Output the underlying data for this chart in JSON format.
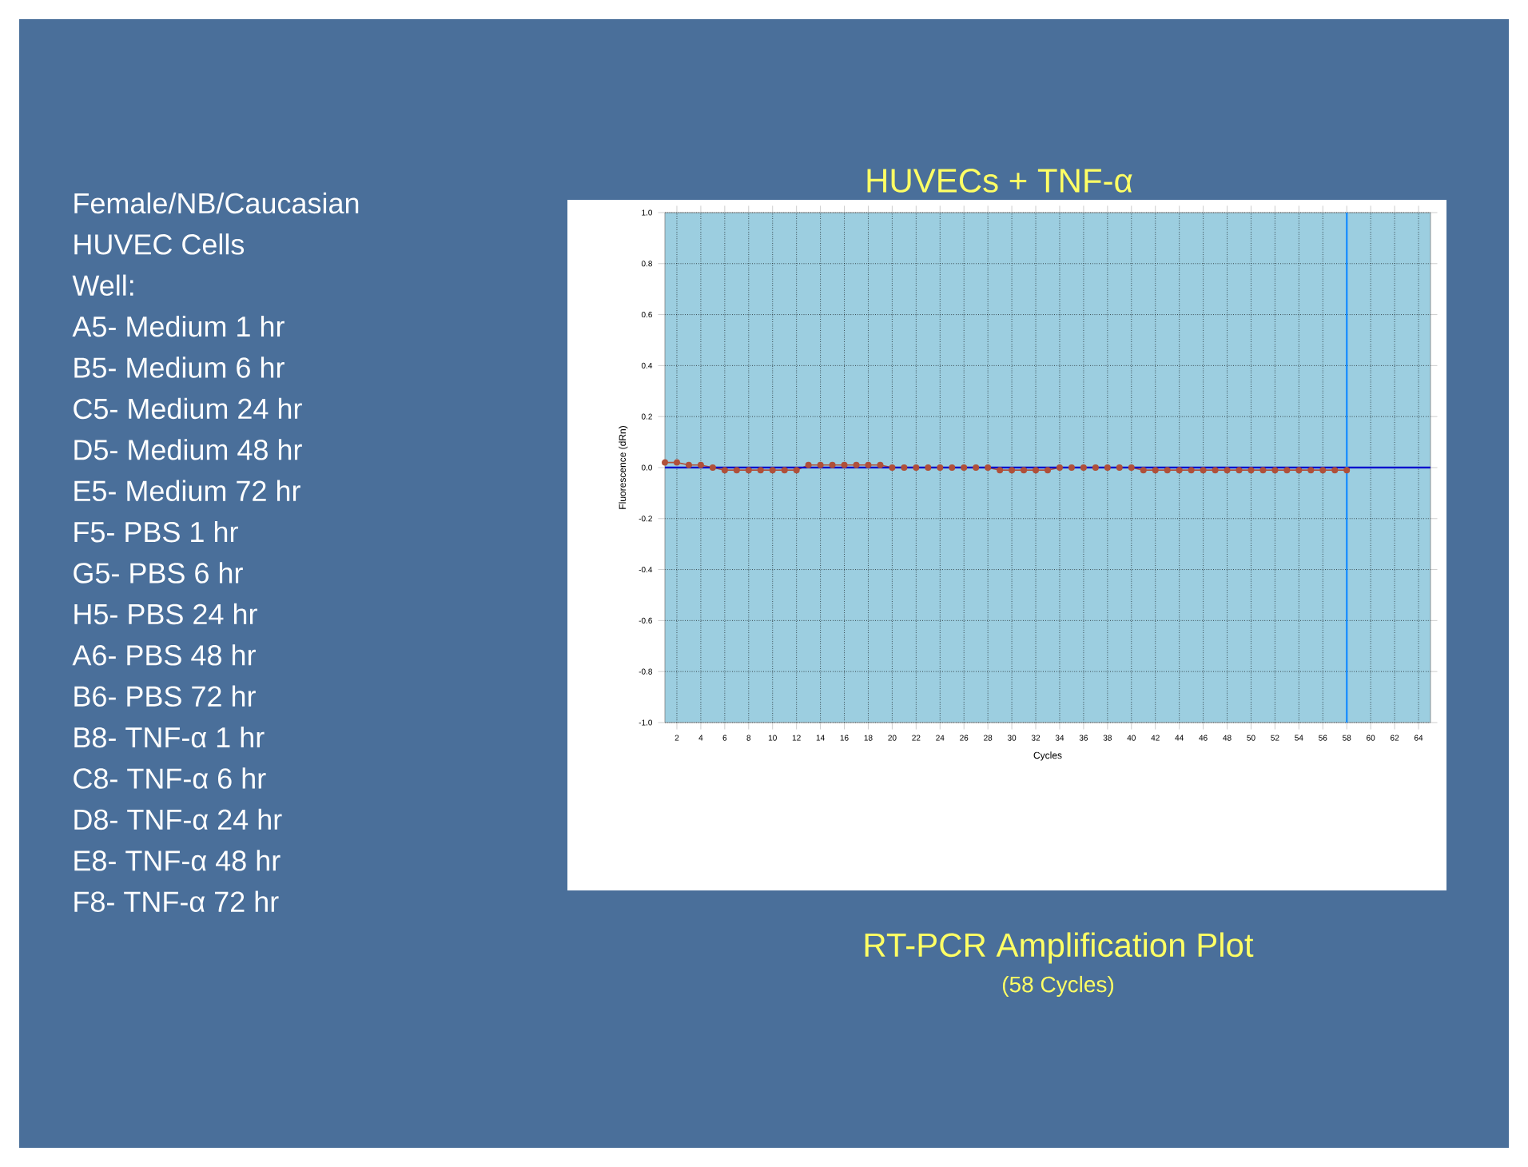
{
  "chart_data": {
    "type": "line",
    "title": "HUVECs + TNF-α",
    "xlabel": "Cycles",
    "ylabel": "Fluorescence (dRn)",
    "annotations": [
      "Female/NB/Caucasian",
      "HUVEC Cells",
      "Well:",
      "A5- Medium 1 hr",
      "B5- Medium 6 hr",
      "C5- Medium 24 hr",
      "D5- Medium 48 hr",
      "E5- Medium 72 hr",
      "F5- PBS 1 hr",
      "G5- PBS 6 hr",
      "H5- PBS 24 hr",
      "A6- PBS 48 hr",
      "B6- PBS 72 hr",
      "B8- TNF-α 1 hr",
      "C8- TNF-α 6 hr",
      "D8- TNF-α 24 hr",
      "E8- TNF-α 48 hr",
      "F8- TNF-α 72 hr",
      "RT-PCR Amplification Plot",
      "(58 Cycles)"
    ],
    "x": [
      1,
      2,
      3,
      4,
      5,
      6,
      7,
      8,
      9,
      10,
      11,
      12,
      13,
      14,
      15,
      16,
      17,
      18,
      19,
      20,
      21,
      22,
      23,
      24,
      25,
      26,
      27,
      28,
      29,
      30,
      31,
      32,
      33,
      34,
      35,
      36,
      37,
      38,
      39,
      40,
      41,
      42,
      43,
      44,
      45,
      46,
      47,
      48,
      49,
      50,
      51,
      52,
      53,
      54,
      55,
      56,
      57,
      58
    ],
    "series": [
      {
        "color": "#b0503a",
        "values": [
          0.02,
          0.02,
          0.01,
          0.01,
          0,
          -0.01,
          -0.01,
          -0.01,
          -0.01,
          -0.01,
          -0.01,
          -0.01,
          0.01,
          0.01,
          0.01,
          0.01,
          0.01,
          0.01,
          0.01,
          0,
          0,
          0,
          0,
          0,
          0,
          0,
          0,
          0,
          -0.01,
          -0.01,
          -0.01,
          -0.01,
          -0.01,
          0,
          0,
          0,
          0,
          0,
          0,
          0,
          -0.01,
          -0.01,
          -0.01,
          -0.01,
          -0.01,
          -0.01,
          -0.01,
          -0.01,
          -0.01,
          -0.01,
          -0.01,
          -0.01,
          -0.01,
          -0.01,
          -0.01,
          -0.01,
          -0.01,
          -0.01
        ]
      }
    ],
    "xlim": [
      1,
      65
    ],
    "ylim": [
      -1,
      1
    ],
    "xticks": [
      2,
      4,
      6,
      8,
      10,
      12,
      14,
      16,
      18,
      20,
      22,
      24,
      26,
      28,
      30,
      32,
      34,
      36,
      38,
      40,
      42,
      44,
      46,
      48,
      50,
      52,
      54,
      56,
      58,
      60,
      62,
      64
    ],
    "yticks": [
      {
        "value": -1,
        "label": "-1.0"
      },
      {
        "value": -0.8,
        "label": "-0.8"
      },
      {
        "value": -0.6,
        "label": "-0.6"
      },
      {
        "value": -0.4,
        "label": "-0.4"
      },
      {
        "value": -0.2,
        "label": "-0.2"
      },
      {
        "value": 0,
        "label": "0.0"
      },
      {
        "value": 0.2,
        "label": "0.2"
      },
      {
        "value": 0.4,
        "label": "0.4"
      },
      {
        "value": 0.6,
        "label": "0.6"
      },
      {
        "value": 0.8,
        "label": "0.8"
      },
      {
        "value": 1,
        "label": "1.0"
      }
    ],
    "grid": true,
    "marker": "circle",
    "line_style": "solid",
    "ref_lines": [
      {
        "axis": "y",
        "value": 0,
        "color": "#0000cc"
      },
      {
        "axis": "x",
        "value": 58,
        "color": "#1e90ff"
      }
    ]
  }
}
